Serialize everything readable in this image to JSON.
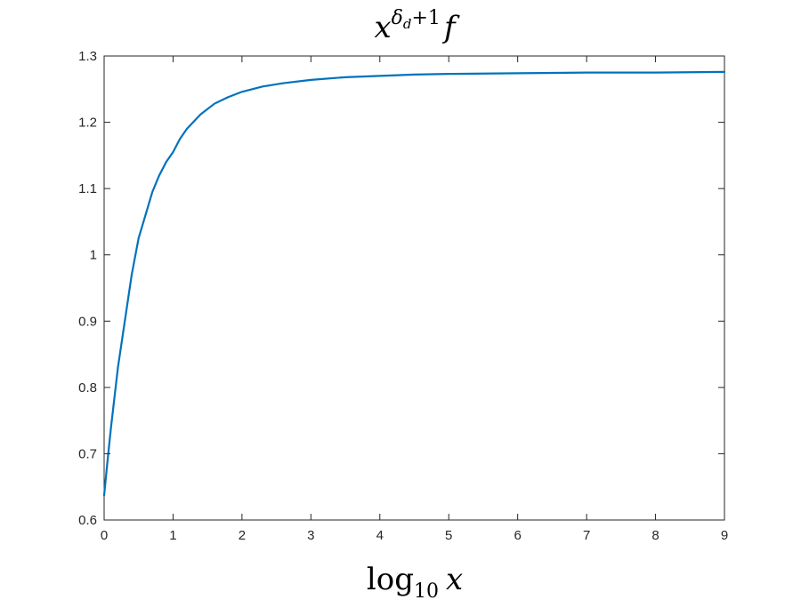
{
  "chart_data": {
    "type": "line",
    "title": {
      "base": "x",
      "exponent_symbol": "δ",
      "exponent_subscript": "d",
      "exponent_rest": "+1",
      "suffix": "f"
    },
    "xlabel": {
      "func": "log",
      "subscript": "10",
      "var": "x"
    },
    "ylabel": "",
    "xlim": [
      0,
      9
    ],
    "ylim": [
      0.6,
      1.3
    ],
    "xticks": [
      0,
      1,
      2,
      3,
      4,
      5,
      6,
      7,
      8,
      9
    ],
    "xtick_labels": [
      "0",
      "1",
      "2",
      "3",
      "4",
      "5",
      "6",
      "7",
      "8",
      "9"
    ],
    "yticks": [
      0.6,
      0.7,
      0.8,
      0.9,
      1.0,
      1.1,
      1.2,
      1.3
    ],
    "ytick_labels": [
      "0.6",
      "0.7",
      "0.8",
      "0.9",
      "1",
      "1.1",
      "1.2",
      "1.3"
    ],
    "grid": false,
    "box": true,
    "series": [
      {
        "color": "#0072BD",
        "x": [
          0,
          0.05,
          0.1,
          0.2,
          0.3,
          0.4,
          0.5,
          0.6,
          0.7,
          0.8,
          0.9,
          1.0,
          1.1,
          1.2,
          1.4,
          1.6,
          1.8,
          2.0,
          2.3,
          2.6,
          3.0,
          3.5,
          4.0,
          4.5,
          5.0,
          6.0,
          7.0,
          8.0,
          9.0
        ],
        "y": [
          0.637,
          0.69,
          0.74,
          0.83,
          0.9,
          0.97,
          1.025,
          1.06,
          1.095,
          1.12,
          1.14,
          1.155,
          1.175,
          1.19,
          1.212,
          1.228,
          1.238,
          1.246,
          1.254,
          1.259,
          1.264,
          1.268,
          1.27,
          1.272,
          1.273,
          1.274,
          1.275,
          1.275,
          1.276
        ]
      }
    ]
  }
}
